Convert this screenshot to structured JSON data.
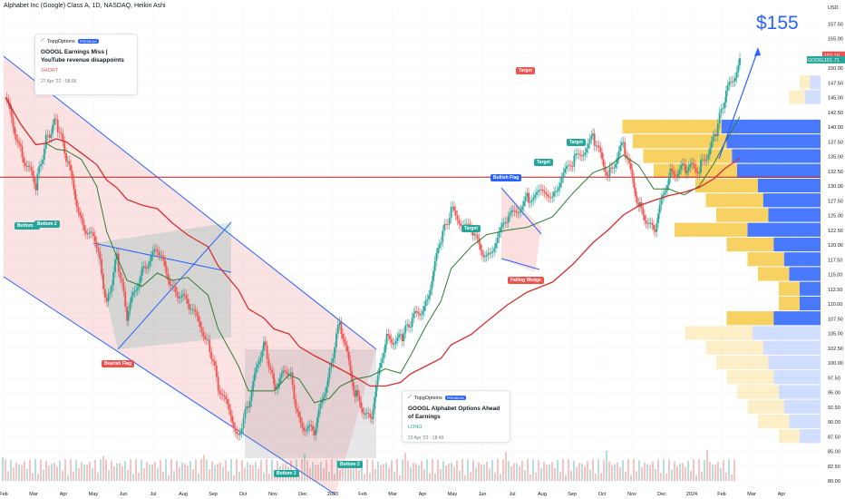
{
  "header": {
    "title": "Alphabet Inc (Google) Class A, 1D, NASDAQ, Heikin Ashi"
  },
  "currency": "USD",
  "big_label": "$155",
  "chart_data": {
    "type": "candlestick",
    "ylim": [
      80,
      160
    ],
    "x_ticks": [
      "Feb",
      "Mar",
      "Apr",
      "May",
      "Jun",
      "Jul",
      "Aug",
      "Sep",
      "Oct",
      "Nov",
      "Dec",
      "2023",
      "Feb",
      "Mar",
      "Apr",
      "May",
      "Jun",
      "Jul",
      "Aug",
      "Sep",
      "Oct",
      "Nov",
      "Dec",
      "2024",
      "Feb",
      "Mar",
      "Apr"
    ],
    "y_ticks": [
      "157.50",
      "155.00",
      "152.50",
      "150.00",
      "147.50",
      "145.00",
      "142.50",
      "140.00",
      "137.50",
      "135.00",
      "132.50",
      "130.00",
      "127.50",
      "125.00",
      "122.50",
      "120.00",
      "117.50",
      "115.00",
      "112.50",
      "110.00",
      "107.50",
      "105.00",
      "102.50",
      "100.00",
      "97.50",
      "95.00",
      "92.50",
      "90.00",
      "87.50",
      "85.00",
      "82.50",
      "80.00"
    ],
    "last_price": "152.19",
    "symbol_label": "GOOGL",
    "symbol_price": "151.71",
    "horizontal_level": 131.5,
    "price_path": [
      [
        0,
        145
      ],
      [
        3,
        136
      ],
      [
        6,
        130
      ],
      [
        8,
        138
      ],
      [
        10,
        141
      ],
      [
        12,
        135
      ],
      [
        15,
        124
      ],
      [
        18,
        120
      ],
      [
        20,
        110
      ],
      [
        22,
        118
      ],
      [
        24,
        108
      ],
      [
        27,
        116
      ],
      [
        30,
        119
      ],
      [
        33,
        113
      ],
      [
        36,
        110
      ],
      [
        40,
        104
      ],
      [
        42,
        96
      ],
      [
        46,
        88
      ],
      [
        48,
        93
      ],
      [
        51,
        104
      ],
      [
        53,
        96
      ],
      [
        56,
        99
      ],
      [
        58,
        90
      ],
      [
        61,
        88
      ],
      [
        64,
        99
      ],
      [
        66,
        107
      ],
      [
        69,
        95
      ],
      [
        72,
        90
      ],
      [
        75,
        104
      ],
      [
        78,
        104
      ],
      [
        80,
        107
      ],
      [
        83,
        110
      ],
      [
        86,
        121
      ],
      [
        88,
        126
      ],
      [
        92,
        122
      ],
      [
        95,
        118
      ],
      [
        99,
        124
      ],
      [
        103,
        128
      ],
      [
        108,
        129
      ],
      [
        112,
        134
      ],
      [
        116,
        138
      ],
      [
        119,
        132
      ],
      [
        122,
        137
      ],
      [
        125,
        127
      ],
      [
        128,
        122
      ],
      [
        131,
        132
      ],
      [
        134,
        133
      ],
      [
        137,
        133
      ],
      [
        140,
        138
      ],
      [
        142,
        145
      ],
      [
        145,
        151
      ]
    ],
    "patterns": [
      "Bottom 1",
      "Bottom 2",
      "Bearish Flag",
      "Bottom 1",
      "Bottom 2",
      "Bullish Flag",
      "Falling Wedge",
      "Target",
      "Target",
      "Target",
      "Target"
    ],
    "cards": [
      {
        "brand": "TopgOptions",
        "badge": "PREMIUM",
        "title": "GOOGL Earnings Miss | YouTube revenue disappoints",
        "direction": "SHORT",
        "time": "27 Apr '22 · 08:06"
      },
      {
        "brand": "TopgOptions",
        "badge": "PREMIUM",
        "title": "GOOGL Alphabet Options Ahead of Earnings",
        "direction": "LONG",
        "time": "23 Apr '23 · 18:49"
      }
    ],
    "colors": {
      "up": "#26a69a",
      "down": "#ef5350",
      "ma_red": "#d32f2f",
      "ma_green": "#2e7d32",
      "channel": "#2962ff",
      "vp_blue": "#2962ff",
      "vp_yellow": "#f7c948"
    }
  }
}
